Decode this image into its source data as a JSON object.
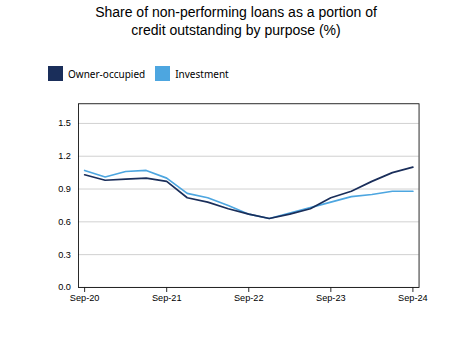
{
  "chart_data": {
    "type": "line",
    "title": "Share of non-performing loans as a portion of\ncredit outstanding by purpose (%)",
    "x": [
      0,
      0.5,
      1,
      1.5,
      2,
      2.5,
      3,
      3.5,
      4,
      4.5,
      5,
      5.5,
      6,
      6.5,
      7,
      7.5,
      8
    ],
    "series": [
      {
        "name": "Owner-occupied",
        "color": "#1a2e5a",
        "values": [
          1.03,
          0.98,
          0.99,
          1.0,
          0.97,
          0.82,
          0.78,
          0.72,
          0.67,
          0.63,
          0.67,
          0.72,
          0.82,
          0.88,
          0.97,
          1.05,
          1.1
        ]
      },
      {
        "name": "Investment",
        "color": "#4da6e0",
        "values": [
          1.07,
          1.01,
          1.06,
          1.07,
          1.0,
          0.86,
          0.82,
          0.75,
          0.67,
          0.63,
          0.68,
          0.73,
          0.78,
          0.83,
          0.85,
          0.88,
          0.88
        ]
      }
    ],
    "xlim": [
      -0.15,
      8.15
    ],
    "xticks": [
      {
        "value": 0,
        "label": "Sep-20"
      },
      {
        "value": 2,
        "label": "Sep-21"
      },
      {
        "value": 4,
        "label": "Sep-22"
      },
      {
        "value": 6,
        "label": "Sep-23"
      },
      {
        "value": 8,
        "label": "Sep-24"
      }
    ],
    "ylim": [
      0.0,
      1.68
    ],
    "yticks": [
      {
        "value": 0,
        "label": "0.0"
      },
      0.3,
      0.6,
      0.9,
      1.2,
      1.5
    ],
    "grid": true,
    "legend": "upper left"
  }
}
